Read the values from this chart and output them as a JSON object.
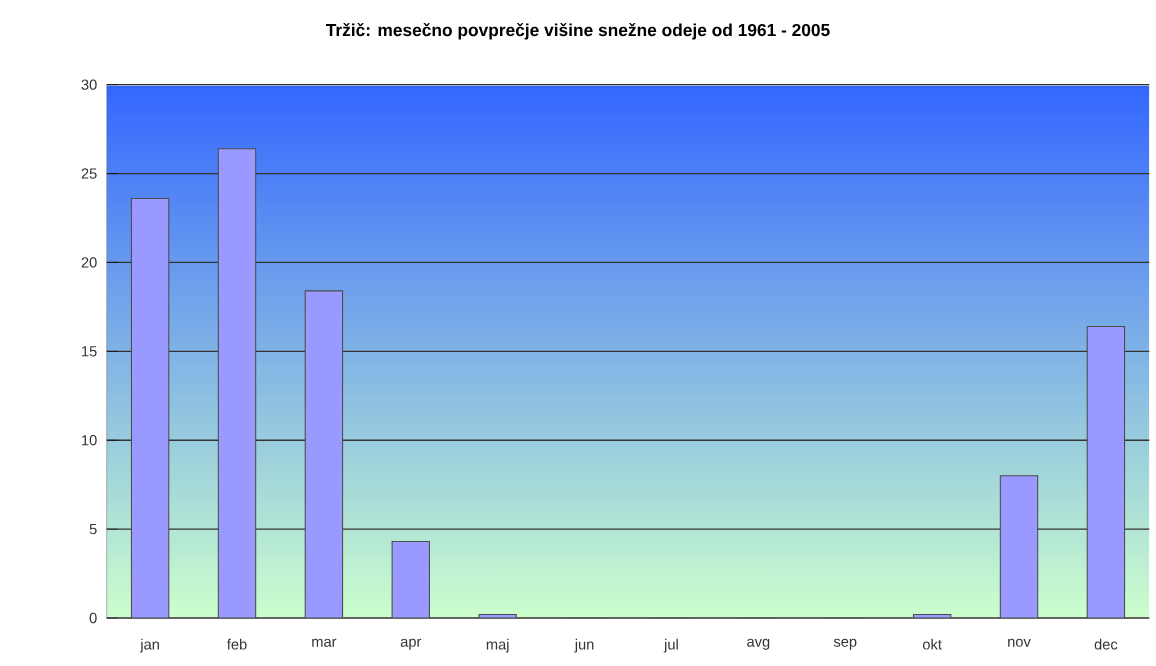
{
  "chart_data": {
    "type": "bar",
    "title": "Tržič: mesečno povprečje višine snežne odeje od 1961 - 2005",
    "categories": [
      "jan",
      "feb",
      "mar",
      "apr",
      "maj",
      "jun",
      "jul",
      "avg",
      "sep",
      "okt",
      "nov",
      "dec"
    ],
    "values": [
      23.6,
      26.4,
      18.4,
      4.3,
      0.2,
      0,
      0,
      0,
      0,
      0.2,
      8.0,
      16.4
    ],
    "color": "#9999ff",
    "ylim": [
      0,
      30
    ],
    "yticks": [
      0,
      5,
      10,
      15,
      20,
      25,
      30
    ],
    "grid": "y"
  }
}
